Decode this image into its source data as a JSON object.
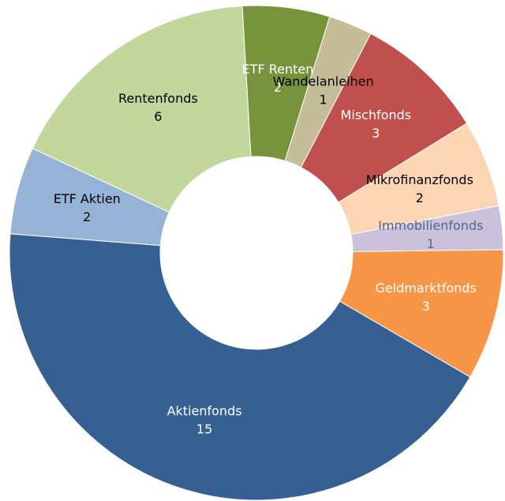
{
  "chart_data": {
    "type": "donut",
    "categories": [
      "ETF Renten",
      "Wandelanleihen",
      "Mischfonds",
      "Mikrofinanzfonds",
      "Immobilienfonds",
      "Geldmarktfonds",
      "Aktienfonds",
      "ETF Aktien",
      "Rentenfonds"
    ],
    "values": [
      2,
      1,
      3,
      2,
      1,
      3,
      15,
      2,
      6
    ],
    "colors": [
      "#77933c",
      "#c4bd97",
      "#c0504d",
      "#fcd5b5",
      "#ccc1da",
      "#f79646",
      "#376092",
      "#95b3d7",
      "#c3d69b"
    ],
    "label_colors": [
      "#ffffff",
      "#000000",
      "#ffffff",
      "#000000",
      "#4f6a8a",
      "#ffffff",
      "#ffffff",
      "#000000",
      "#000000"
    ]
  }
}
